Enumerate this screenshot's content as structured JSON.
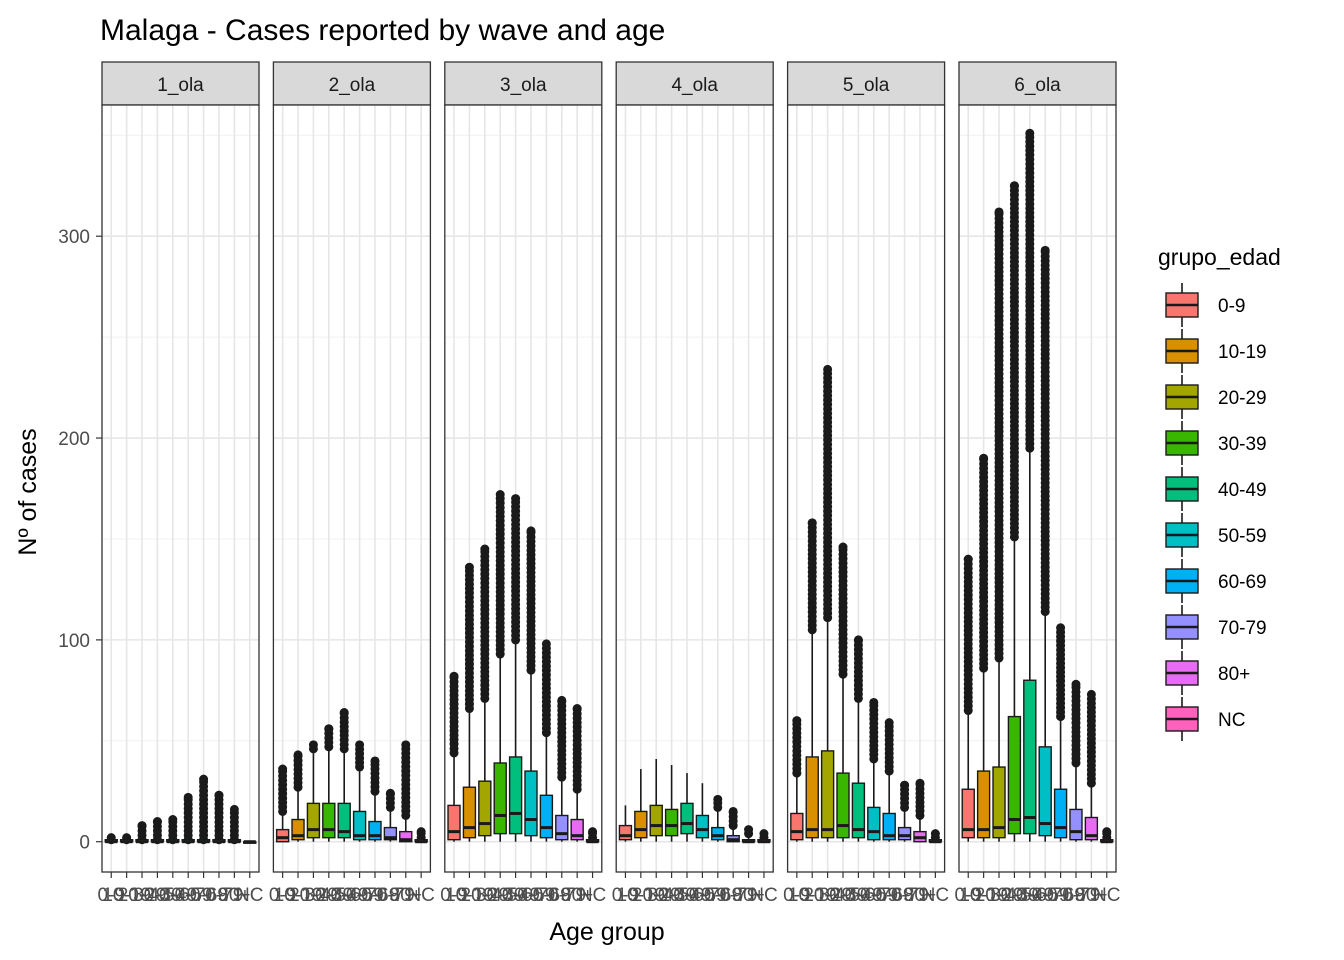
{
  "chart_data": {
    "type": "boxplot",
    "title": "Malaga - Cases reported by wave and age",
    "xlabel": "Age group",
    "ylabel": "Nº of cases",
    "ylim": [
      -15,
      365
    ],
    "yticks": [
      0,
      100,
      200,
      300
    ],
    "grid": true,
    "legend": {
      "title": "grupo_edad",
      "position": "right"
    },
    "categories": [
      "0-9",
      "10-19",
      "20-29",
      "30-39",
      "40-49",
      "50-59",
      "60-69",
      "70-79",
      "80+",
      "NC"
    ],
    "x_tick_labels": [
      "0-9",
      "10-19",
      "20-29",
      "30-39",
      "40-49",
      "50-59",
      "60-69",
      "70-79",
      "80+",
      "NC"
    ],
    "colors": [
      "#F8766D",
      "#D89000",
      "#A3A500",
      "#39B600",
      "#00BF7D",
      "#00BFC4",
      "#00B0F6",
      "#9590FF",
      "#E76BF3",
      "#FF62BC"
    ],
    "panels": [
      {
        "label": "1_ola",
        "boxes": [
          {
            "group": "0-9",
            "q1": 0,
            "median": 0,
            "q3": 1,
            "min": 0,
            "max": 1,
            "outliers_range": [
              1,
              2
            ]
          },
          {
            "group": "10-19",
            "q1": 0,
            "median": 0,
            "q3": 1,
            "min": 0,
            "max": 1,
            "outliers_range": [
              1,
              2
            ]
          },
          {
            "group": "20-29",
            "q1": 0,
            "median": 0,
            "q3": 1,
            "min": 0,
            "max": 1,
            "outliers_range": [
              1,
              8
            ]
          },
          {
            "group": "30-39",
            "q1": 0,
            "median": 0,
            "q3": 1,
            "min": 0,
            "max": 1,
            "outliers_range": [
              1,
              10
            ]
          },
          {
            "group": "40-49",
            "q1": 0,
            "median": 0,
            "q3": 1,
            "min": 0,
            "max": 1,
            "outliers_range": [
              1,
              11
            ]
          },
          {
            "group": "50-59",
            "q1": 0,
            "median": 0,
            "q3": 1,
            "min": 0,
            "max": 1,
            "outliers_range": [
              1,
              22
            ]
          },
          {
            "group": "60-69",
            "q1": 0,
            "median": 0,
            "q3": 1,
            "min": 0,
            "max": 1,
            "outliers_range": [
              1,
              31
            ]
          },
          {
            "group": "70-79",
            "q1": 0,
            "median": 0,
            "q3": 1,
            "min": 0,
            "max": 1,
            "outliers_range": [
              1,
              23
            ]
          },
          {
            "group": "80+",
            "q1": 0,
            "median": 0,
            "q3": 1,
            "min": 0,
            "max": 1,
            "outliers_range": [
              1,
              16
            ]
          },
          {
            "group": "NC",
            "q1": 0,
            "median": 0,
            "q3": 0,
            "min": 0,
            "max": 0,
            "outliers_range": [
              0,
              0
            ]
          }
        ]
      },
      {
        "label": "2_ola",
        "boxes": [
          {
            "group": "0-9",
            "q1": 0,
            "median": 2,
            "q3": 6,
            "min": 0,
            "max": 14,
            "outliers_range": [
              15,
              36
            ]
          },
          {
            "group": "10-19",
            "q1": 1,
            "median": 3,
            "q3": 11,
            "min": 0,
            "max": 26,
            "outliers_range": [
              27,
              43
            ]
          },
          {
            "group": "20-29",
            "q1": 2,
            "median": 6,
            "q3": 19,
            "min": 0,
            "max": 45,
            "outliers_range": [
              46,
              48
            ]
          },
          {
            "group": "30-39",
            "q1": 2,
            "median": 6,
            "q3": 19,
            "min": 0,
            "max": 46,
            "outliers_range": [
              47,
              56
            ]
          },
          {
            "group": "40-49",
            "q1": 2,
            "median": 5,
            "q3": 19,
            "min": 0,
            "max": 45,
            "outliers_range": [
              46,
              64
            ]
          },
          {
            "group": "50-59",
            "q1": 1,
            "median": 3,
            "q3": 15,
            "min": 0,
            "max": 36,
            "outliers_range": [
              37,
              48
            ]
          },
          {
            "group": "60-69",
            "q1": 1,
            "median": 3,
            "q3": 10,
            "min": 0,
            "max": 24,
            "outliers_range": [
              25,
              40
            ]
          },
          {
            "group": "70-79",
            "q1": 1,
            "median": 2,
            "q3": 7,
            "min": 0,
            "max": 16,
            "outliers_range": [
              17,
              24
            ]
          },
          {
            "group": "80+",
            "q1": 0,
            "median": 1,
            "q3": 5,
            "min": 0,
            "max": 12,
            "outliers_range": [
              13,
              48
            ]
          },
          {
            "group": "NC",
            "q1": 0,
            "median": 0,
            "q3": 1,
            "min": 0,
            "max": 2,
            "outliers_range": [
              2,
              5
            ]
          }
        ]
      },
      {
        "label": "3_ola",
        "boxes": [
          {
            "group": "0-9",
            "q1": 1,
            "median": 5,
            "q3": 18,
            "min": 0,
            "max": 43,
            "outliers_range": [
              44,
              82
            ]
          },
          {
            "group": "10-19",
            "q1": 2,
            "median": 7,
            "q3": 27,
            "min": 0,
            "max": 65,
            "outliers_range": [
              66,
              136
            ]
          },
          {
            "group": "20-29",
            "q1": 3,
            "median": 9,
            "q3": 30,
            "min": 0,
            "max": 70,
            "outliers_range": [
              71,
              145
            ]
          },
          {
            "group": "30-39",
            "q1": 4,
            "median": 13,
            "q3": 39,
            "min": 0,
            "max": 92,
            "outliers_range": [
              93,
              172
            ]
          },
          {
            "group": "40-49",
            "q1": 4,
            "median": 14,
            "q3": 42,
            "min": 0,
            "max": 99,
            "outliers_range": [
              100,
              170
            ]
          },
          {
            "group": "50-59",
            "q1": 3,
            "median": 11,
            "q3": 35,
            "min": 0,
            "max": 84,
            "outliers_range": [
              85,
              154
            ]
          },
          {
            "group": "60-69",
            "q1": 2,
            "median": 7,
            "q3": 23,
            "min": 0,
            "max": 53,
            "outliers_range": [
              54,
              98
            ]
          },
          {
            "group": "70-79",
            "q1": 1,
            "median": 4,
            "q3": 13,
            "min": 0,
            "max": 31,
            "outliers_range": [
              32,
              70
            ]
          },
          {
            "group": "80+",
            "q1": 1,
            "median": 3,
            "q3": 11,
            "min": 0,
            "max": 25,
            "outliers_range": [
              26,
              66
            ]
          },
          {
            "group": "NC",
            "q1": 0,
            "median": 0,
            "q3": 1,
            "min": 0,
            "max": 2,
            "outliers_range": [
              2,
              5
            ]
          }
        ]
      },
      {
        "label": "4_ola",
        "boxes": [
          {
            "group": "0-9",
            "q1": 1,
            "median": 3,
            "q3": 8,
            "min": 0,
            "max": 18,
            "outliers_range": [
              18,
              18
            ]
          },
          {
            "group": "10-19",
            "q1": 2,
            "median": 6,
            "q3": 15,
            "min": 0,
            "max": 36,
            "outliers_range": [
              36,
              36
            ]
          },
          {
            "group": "20-29",
            "q1": 3,
            "median": 8,
            "q3": 18,
            "min": 0,
            "max": 41,
            "outliers_range": [
              41,
              41
            ]
          },
          {
            "group": "30-39",
            "q1": 3,
            "median": 8,
            "q3": 16,
            "min": 0,
            "max": 38,
            "outliers_range": [
              38,
              38
            ]
          },
          {
            "group": "40-49",
            "q1": 4,
            "median": 9,
            "q3": 19,
            "min": 0,
            "max": 34,
            "outliers_range": [
              34,
              34
            ]
          },
          {
            "group": "50-59",
            "q1": 2,
            "median": 6,
            "q3": 13,
            "min": 0,
            "max": 29,
            "outliers_range": [
              29,
              29
            ]
          },
          {
            "group": "60-69",
            "q1": 1,
            "median": 3,
            "q3": 7,
            "min": 0,
            "max": 16,
            "outliers_range": [
              17,
              21
            ]
          },
          {
            "group": "70-79",
            "q1": 0,
            "median": 1,
            "q3": 3,
            "min": 0,
            "max": 7,
            "outliers_range": [
              8,
              15
            ]
          },
          {
            "group": "80+",
            "q1": 0,
            "median": 0,
            "q3": 1,
            "min": 0,
            "max": 3,
            "outliers_range": [
              4,
              6
            ]
          },
          {
            "group": "NC",
            "q1": 0,
            "median": 0,
            "q3": 1,
            "min": 0,
            "max": 2,
            "outliers_range": [
              2,
              4
            ]
          }
        ]
      },
      {
        "label": "5_ola",
        "boxes": [
          {
            "group": "0-9",
            "q1": 1,
            "median": 5,
            "q3": 14,
            "min": 0,
            "max": 33,
            "outliers_range": [
              34,
              60
            ]
          },
          {
            "group": "10-19",
            "q1": 2,
            "median": 6,
            "q3": 42,
            "min": 0,
            "max": 104,
            "outliers_range": [
              105,
              158
            ]
          },
          {
            "group": "20-29",
            "q1": 2,
            "median": 6,
            "q3": 45,
            "min": 0,
            "max": 110,
            "outliers_range": [
              111,
              234
            ]
          },
          {
            "group": "30-39",
            "q1": 2,
            "median": 8,
            "q3": 34,
            "min": 0,
            "max": 82,
            "outliers_range": [
              83,
              146
            ]
          },
          {
            "group": "40-49",
            "q1": 2,
            "median": 6,
            "q3": 29,
            "min": 0,
            "max": 70,
            "outliers_range": [
              71,
              100
            ]
          },
          {
            "group": "50-59",
            "q1": 1,
            "median": 5,
            "q3": 17,
            "min": 0,
            "max": 40,
            "outliers_range": [
              41,
              69
            ]
          },
          {
            "group": "60-69",
            "q1": 1,
            "median": 3,
            "q3": 14,
            "min": 0,
            "max": 34,
            "outliers_range": [
              35,
              59
            ]
          },
          {
            "group": "70-79",
            "q1": 1,
            "median": 3,
            "q3": 7,
            "min": 0,
            "max": 16,
            "outliers_range": [
              17,
              28
            ]
          },
          {
            "group": "80+",
            "q1": 0,
            "median": 2,
            "q3": 5,
            "min": 0,
            "max": 12,
            "outliers_range": [
              13,
              29
            ]
          },
          {
            "group": "NC",
            "q1": 0,
            "median": 0,
            "q3": 1,
            "min": 0,
            "max": 2,
            "outliers_range": [
              2,
              4
            ]
          }
        ]
      },
      {
        "label": "6_ola",
        "boxes": [
          {
            "group": "0-9",
            "q1": 2,
            "median": 6,
            "q3": 26,
            "min": 0,
            "max": 64,
            "outliers_range": [
              65,
              140
            ]
          },
          {
            "group": "10-19",
            "q1": 2,
            "median": 6,
            "q3": 35,
            "min": 0,
            "max": 85,
            "outliers_range": [
              86,
              190
            ]
          },
          {
            "group": "20-29",
            "q1": 2,
            "median": 7,
            "q3": 37,
            "min": 0,
            "max": 90,
            "outliers_range": [
              91,
              312
            ]
          },
          {
            "group": "30-39",
            "q1": 4,
            "median": 11,
            "q3": 62,
            "min": 0,
            "max": 150,
            "outliers_range": [
              151,
              325
            ]
          },
          {
            "group": "40-49",
            "q1": 4,
            "median": 12,
            "q3": 80,
            "min": 0,
            "max": 194,
            "outliers_range": [
              195,
              351
            ]
          },
          {
            "group": "50-59",
            "q1": 3,
            "median": 9,
            "q3": 47,
            "min": 0,
            "max": 113,
            "outliers_range": [
              114,
              293
            ]
          },
          {
            "group": "60-69",
            "q1": 2,
            "median": 7,
            "q3": 26,
            "min": 0,
            "max": 61,
            "outliers_range": [
              62,
              106
            ]
          },
          {
            "group": "70-79",
            "q1": 1,
            "median": 5,
            "q3": 16,
            "min": 0,
            "max": 38,
            "outliers_range": [
              39,
              78
            ]
          },
          {
            "group": "80+",
            "q1": 1,
            "median": 3,
            "q3": 12,
            "min": 0,
            "max": 28,
            "outliers_range": [
              29,
              73
            ]
          },
          {
            "group": "NC",
            "q1": 0,
            "median": 0,
            "q3": 1,
            "min": 0,
            "max": 2,
            "outliers_range": [
              2,
              5
            ]
          }
        ]
      }
    ]
  }
}
